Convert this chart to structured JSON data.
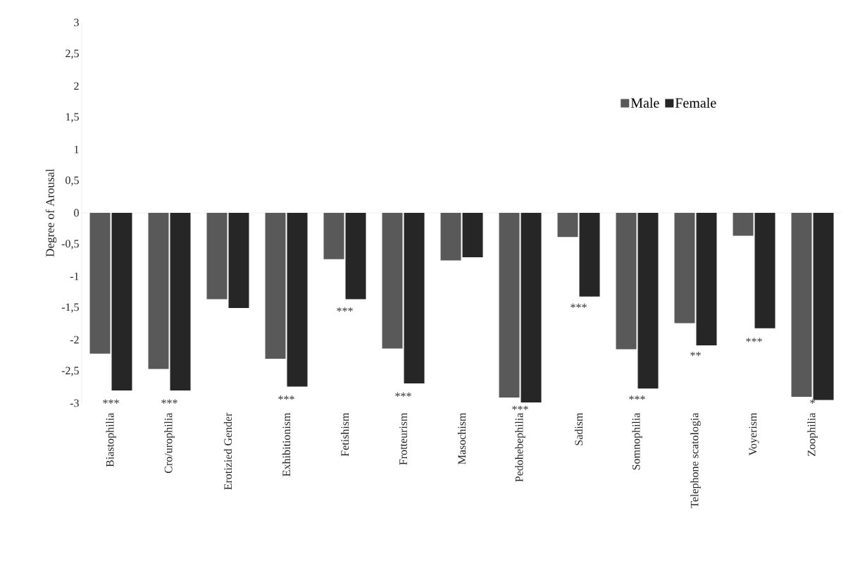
{
  "chart_data": {
    "type": "bar",
    "ylabel": "Degree of Arousal",
    "categories": [
      "Biastophilia",
      "Cro/urophilia",
      "Erotizied Gender",
      "Exhibitionism",
      "Fetishism",
      "Frotteurism",
      "Masochism",
      "Pedohebephilia",
      "Sadism",
      "Somnophilia",
      "Telephone scatologia",
      "Voyerism",
      "Zoophilia"
    ],
    "series": [
      {
        "name": "Male",
        "color": "#595959",
        "values": [
          -2.22,
          -2.46,
          -1.36,
          -2.3,
          -0.73,
          -2.14,
          -0.75,
          -2.91,
          -0.38,
          -2.15,
          -1.74,
          -0.36,
          -2.9
        ]
      },
      {
        "name": "Female",
        "color": "#262626",
        "values": [
          -2.8,
          -2.8,
          -1.5,
          -2.74,
          -1.36,
          -2.69,
          -0.7,
          -2.99,
          -1.32,
          -2.77,
          -2.09,
          -1.82,
          -2.95
        ]
      }
    ],
    "ylim": [
      -3,
      3
    ],
    "yticks": [
      3,
      {
        "value": 2.5,
        "label": "2,5"
      },
      2,
      {
        "value": 1.5,
        "label": "1,5"
      },
      1,
      {
        "value": 0.5,
        "label": "0,5"
      },
      0,
      {
        "value": -0.5,
        "label": "-0,5"
      },
      -1,
      {
        "value": -1.5,
        "label": "-1,5"
      },
      -2,
      {
        "value": -2.5,
        "label": "-2,5"
      },
      -3
    ],
    "legend": "top right",
    "ref_lines": [
      {
        "axis": "y",
        "value": 0,
        "color": "#d9d9d9"
      }
    ],
    "annotations": [
      "***",
      "***",
      "***",
      "***",
      "***",
      "***",
      "***",
      "***",
      "**",
      "***",
      "*"
    ]
  }
}
